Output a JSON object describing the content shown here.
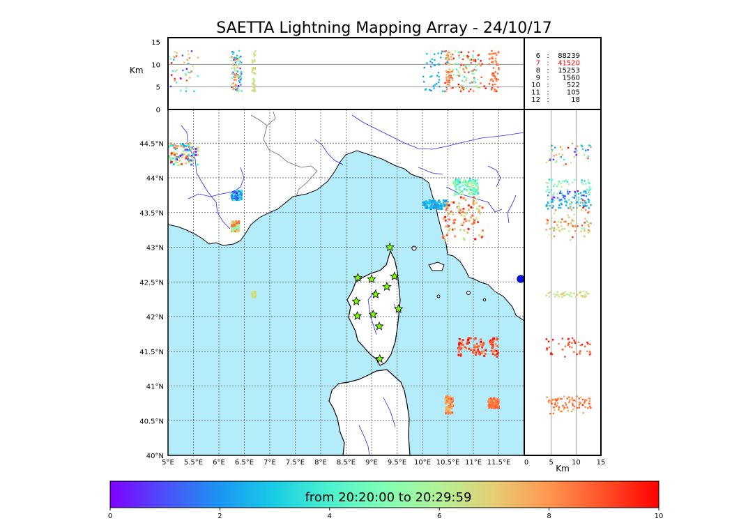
{
  "title": "SAETTA Lightning Mapping Array - 24/10/17",
  "chart_data": [
    {
      "type": "scatter",
      "panel": "map (plan view)",
      "x_ticks": [
        "5°E",
        "5.5°E",
        "6°E",
        "6.5°E",
        "7°E",
        "7.5°E",
        "8°E",
        "8.5°E",
        "9°E",
        "9.5°E",
        "10°E",
        "10.5°E",
        "11°E",
        "11.5°E"
      ],
      "y_ticks": [
        "40°N",
        "40.5°N",
        "41°N",
        "41.5°N",
        "42°N",
        "42.5°N",
        "43°N",
        "43.5°N",
        "44°N",
        "44.5°N"
      ],
      "xlim": [
        5,
        12
      ],
      "ylim": [
        40,
        45
      ],
      "grid": true,
      "stations": [
        {
          "lon": 9.36,
          "lat": 43.0
        },
        {
          "lon": 8.73,
          "lat": 42.56
        },
        {
          "lon": 9.0,
          "lat": 42.54
        },
        {
          "lon": 9.45,
          "lat": 42.58
        },
        {
          "lon": 9.3,
          "lat": 42.43
        },
        {
          "lon": 9.08,
          "lat": 42.32
        },
        {
          "lon": 8.7,
          "lat": 42.22
        },
        {
          "lon": 9.53,
          "lat": 42.11
        },
        {
          "lon": 9.03,
          "lat": 42.03
        },
        {
          "lon": 8.72,
          "lat": 42.01
        },
        {
          "lon": 9.15,
          "lat": 41.86
        },
        {
          "lon": 9.16,
          "lat": 41.39
        }
      ],
      "clusters": [
        {
          "lon": [
            5.0,
            5.6
          ],
          "lat": [
            44.18,
            44.5
          ],
          "t": [
            0,
            10
          ]
        },
        {
          "lon": [
            6.25,
            6.45
          ],
          "lat": [
            43.68,
            43.82
          ],
          "t": [
            0,
            4
          ]
        },
        {
          "lon": [
            6.25,
            6.4
          ],
          "lat": [
            43.22,
            43.38
          ],
          "t": [
            5,
            9
          ]
        },
        {
          "lon": [
            6.65,
            6.72
          ],
          "lat": [
            42.28,
            42.36
          ],
          "t": [
            6,
            7
          ]
        },
        {
          "lon": [
            10.0,
            10.5
          ],
          "lat": [
            43.55,
            43.68
          ],
          "t": [
            2,
            3
          ]
        },
        {
          "lon": [
            10.4,
            11.2
          ],
          "lat": [
            43.1,
            43.72
          ],
          "t": [
            6,
            10
          ]
        },
        {
          "lon": [
            10.6,
            11.1
          ],
          "lat": [
            43.75,
            43.98
          ],
          "t": [
            3,
            6
          ]
        },
        {
          "lon": [
            10.7,
            11.5
          ],
          "lat": [
            41.42,
            41.7
          ],
          "t": [
            8,
            10
          ]
        },
        {
          "lon": [
            10.45,
            10.6
          ],
          "lat": [
            40.6,
            40.85
          ],
          "t": [
            7,
            9
          ]
        },
        {
          "lon": [
            11.3,
            11.5
          ],
          "lat": [
            40.68,
            40.82
          ],
          "t": [
            8,
            9
          ]
        }
      ]
    },
    {
      "type": "scatter",
      "panel": "longitude-altitude",
      "ylabel": "Km",
      "y_ticks": [
        "0",
        "5",
        "10",
        "15"
      ],
      "ylim": [
        0,
        15
      ],
      "xlim": [
        5,
        12
      ]
    },
    {
      "type": "scatter",
      "panel": "altitude-latitude",
      "xlabel": "Km",
      "x_ticks": [
        "0",
        "5",
        "10",
        "15"
      ],
      "xlim": [
        0,
        15
      ],
      "ylim": [
        40,
        45
      ]
    },
    {
      "type": "table",
      "panel": "station count histogram",
      "rows": [
        {
          "stations": "6",
          "sep": ":",
          "count": "88239"
        },
        {
          "stations": "7",
          "sep": ":",
          "count": "41520",
          "highlight": true
        },
        {
          "stations": "8",
          "sep": ":",
          "count": "15253"
        },
        {
          "stations": "9",
          "sep": ":",
          "count": "1560"
        },
        {
          "stations": "10",
          "sep": ":",
          "count": "522"
        },
        {
          "stations": "11",
          "sep": ":",
          "count": "105"
        },
        {
          "stations": "12",
          "sep": ":",
          "count": "18"
        }
      ],
      "highlight_color": "#ff0000"
    },
    {
      "type": "heatmap",
      "panel": "time colorbar",
      "label": "from 20:20:00 to 20:29:59",
      "ticks": [
        "0",
        "2",
        "4",
        "6",
        "8",
        "10"
      ],
      "range": [
        0,
        10
      ],
      "colormap": "rainbow"
    }
  ],
  "colors": {
    "sea": "#b5ecfa",
    "land": "#ffffff",
    "coast": "#000000",
    "rivers": "#1f1fff",
    "borders": "#555555",
    "station_fill": "#7fff00"
  }
}
